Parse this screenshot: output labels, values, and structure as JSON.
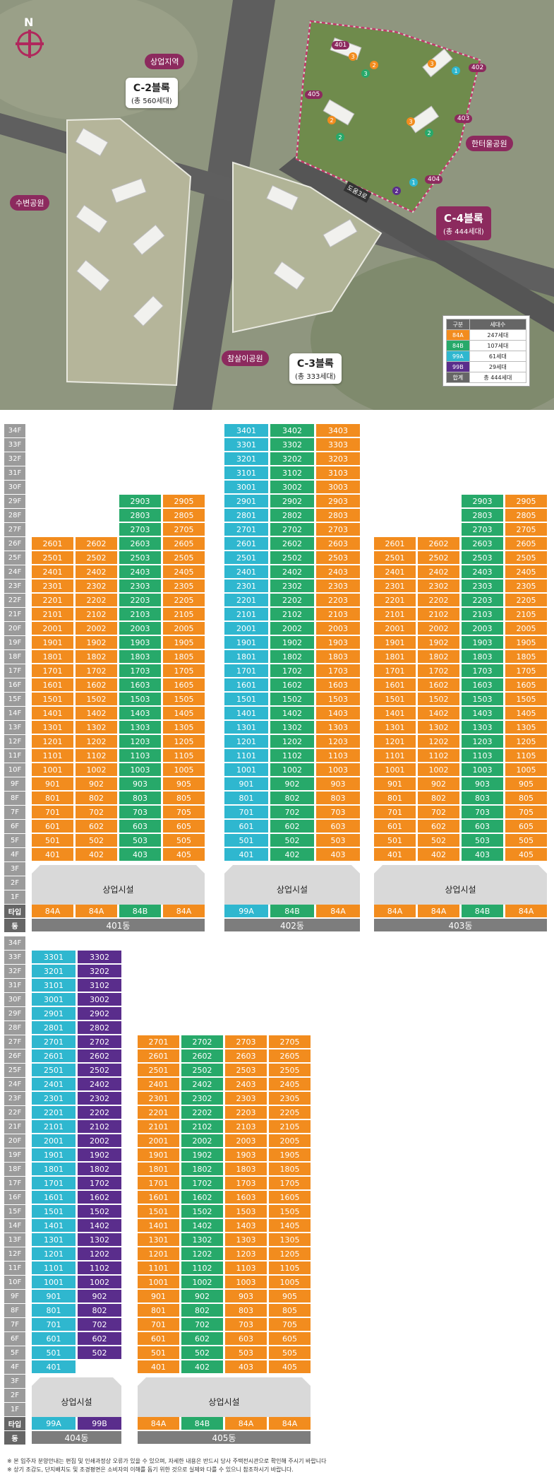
{
  "map": {
    "compass": "N",
    "labels": {
      "commercial": "상업지역",
      "waterfront_park": "수변공원",
      "hanteul_park": "한터울공원",
      "chamsal_park": "참살이공원",
      "road": "도움3로"
    },
    "c2": {
      "name": "C-2블록",
      "sub": "(총 560세대)"
    },
    "c3": {
      "name": "C-3블록",
      "sub": "(총 333세대)"
    },
    "c4": {
      "name": "C-4블록",
      "sub": "(총 444세대)"
    },
    "dong_tags": [
      "401",
      "402",
      "403",
      "404",
      "405"
    ],
    "legend": {
      "headers": [
        "구분",
        "세대수"
      ],
      "rows": [
        {
          "type": "84A",
          "count": "247세대",
          "color": "#f28c1e"
        },
        {
          "type": "84B",
          "count": "107세대",
          "color": "#27a96a"
        },
        {
          "type": "99A",
          "count": "61세대",
          "color": "#2fb7cf"
        },
        {
          "type": "99B",
          "count": "29세대",
          "color": "#5a2d8c"
        },
        {
          "type": "합계",
          "count": "총 444세대",
          "color": "#666666"
        }
      ]
    }
  },
  "colors": {
    "84A": "#f28c1e",
    "84B": "#27a96a",
    "99A": "#2fb7cf",
    "99B": "#5a2d8c",
    "commercial": "#d9d9d9",
    "accent": "#8c2a5e"
  },
  "axis_labels": {
    "floors_top": [
      "34F",
      "33F",
      "32F",
      "31F",
      "30F",
      "29F",
      "28F",
      "27F",
      "26F",
      "25F",
      "24F",
      "23F",
      "22F",
      "21F",
      "20F",
      "19F",
      "18F",
      "17F",
      "16F",
      "15F",
      "14F",
      "13F",
      "12F",
      "11F",
      "10F",
      "9F",
      "8F",
      "7F",
      "6F",
      "5F",
      "4F",
      "3F",
      "2F",
      "1F"
    ],
    "type_label": "타입",
    "dong_label": "동"
  },
  "commercial_label": "상업시설",
  "buildings": [
    {
      "dong": "401동",
      "columns": [
        {
          "line": "01",
          "type": "84A",
          "top": 26
        },
        {
          "line": "02",
          "type": "84A",
          "top": 26
        },
        {
          "line": "03",
          "type": "84B",
          "top": 29
        },
        {
          "line": "05",
          "type": "84A",
          "top": 29
        }
      ]
    },
    {
      "dong": "402동",
      "columns": [
        {
          "line": "01",
          "type": "99A",
          "top": 34
        },
        {
          "line": "02",
          "type": "84B",
          "top": 34
        },
        {
          "line": "03",
          "type": "84A",
          "top": 34
        }
      ]
    },
    {
      "dong": "403동",
      "columns": [
        {
          "line": "01",
          "type": "84A",
          "top": 26
        },
        {
          "line": "02",
          "type": "84A",
          "top": 26
        },
        {
          "line": "03",
          "type": "84B",
          "top": 29
        },
        {
          "line": "05",
          "type": "84A",
          "top": 29
        }
      ]
    },
    {
      "dong": "404동",
      "columns": [
        {
          "line": "01",
          "type": "99A",
          "top": 33
        },
        {
          "line": "02",
          "type": "99B",
          "top": 33,
          "bottom": 5
        }
      ]
    },
    {
      "dong": "405동",
      "columns": [
        {
          "line": "01",
          "type": "84A",
          "top": 27
        },
        {
          "line": "02",
          "type": "84B",
          "top": 27
        },
        {
          "line": "03",
          "type": "84A",
          "top": 27
        },
        {
          "line": "05",
          "type": "84A",
          "top": 27
        }
      ]
    }
  ],
  "notes": [
    "※ 본 입주자 분양안내는 편집 및 인쇄과정상 오류가 있을 수 있으며, 자세한 내용은 반드시 당사 주택전시관으로 확인해 주시기 바랍니다",
    "※ 상기 조감도, 단지배치도 및 조경평면은 소비자의 이해를 돕기 위한 것으로 실제와 다를 수 있으니 참조하시기 바랍니다."
  ]
}
